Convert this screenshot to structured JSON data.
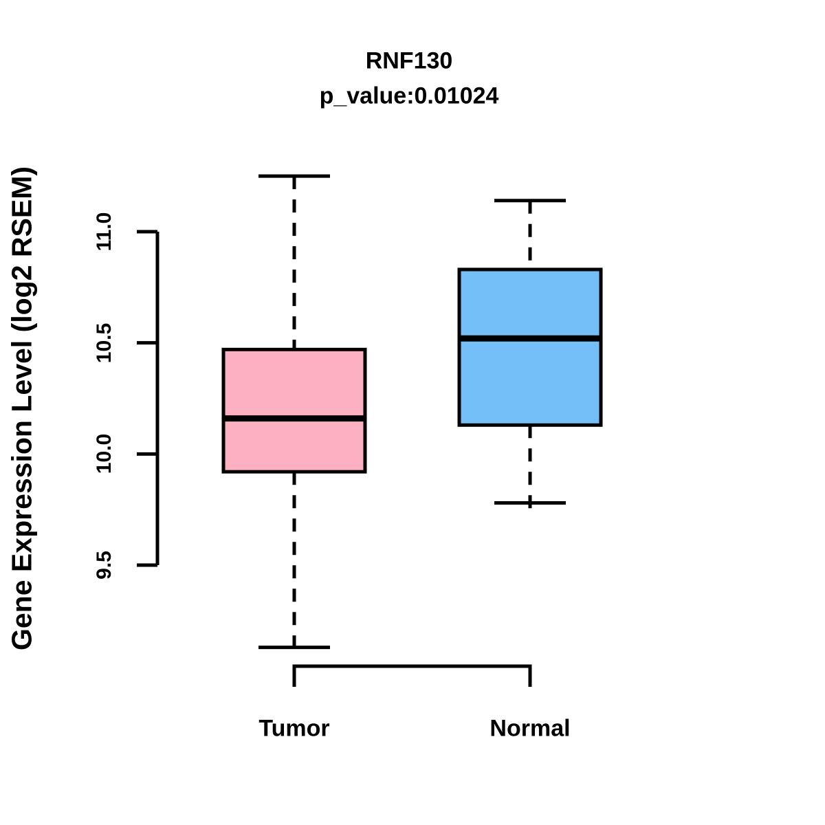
{
  "figure": {
    "title": "RNF130",
    "subtitle": "p_value:0.01024",
    "gene": "RNF130",
    "p_value": 0.01024
  },
  "chart_data": {
    "type": "boxplot",
    "title": "RNF130",
    "subtitle": "p_value:0.01024",
    "xlabel": "",
    "ylabel": "Gene Expression Level (log2 RSEM)",
    "categories": [
      "Tumor",
      "Normal"
    ],
    "y_ticks": [
      9.5,
      10.0,
      10.5,
      11.0
    ],
    "y_tick_labels": [
      "9.5",
      "10.0",
      "10.5",
      "11.0"
    ],
    "ylim_ticks": [
      9.5,
      11.0
    ],
    "grid": false,
    "legend": "none",
    "series": [
      {
        "name": "Tumor",
        "color": "#FCB0C2",
        "whisker_low": 9.13,
        "q1": 9.92,
        "median": 10.16,
        "q3": 10.47,
        "whisker_high": 11.25
      },
      {
        "name": "Normal",
        "color": "#74BFF7",
        "whisker_low": 9.78,
        "q1": 10.13,
        "median": 10.52,
        "q3": 10.83,
        "whisker_high": 11.14
      }
    ],
    "annotations": {
      "comparison_bracket_between": [
        "Tumor",
        "Normal"
      ]
    },
    "colors": {
      "stroke": "#000000",
      "background": "#ffffff"
    }
  }
}
